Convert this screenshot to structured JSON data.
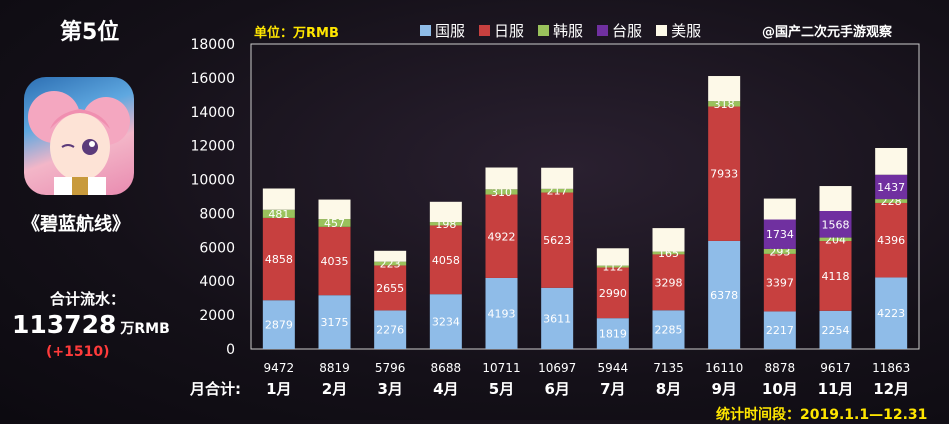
{
  "rank_label": "第5位",
  "game_name": "《碧蓝航线》",
  "icon_name": "azur-lane-app-icon",
  "total_label": "合计流水：",
  "total_value": "113728",
  "total_unit": "万RMB",
  "total_delta": "(+1510)",
  "unit_label": "单位：万RMB",
  "source_label": "@国产二次元手游观察",
  "period_label": "统计时间段：2019.1.1—12.31",
  "monthly_total_label": "月合计:",
  "colors": {
    "国服": "#8fbce8",
    "日服": "#c7403f",
    "韩服": "#9ac25c",
    "台服": "#7030a0",
    "美服": "#fdf9e8",
    "axis_text": "#ffffff",
    "gridline": "#cccccc"
  },
  "chart_data": {
    "type": "bar",
    "stacked": true,
    "categories": [
      "1月",
      "2月",
      "3月",
      "4月",
      "5月",
      "6月",
      "7月",
      "8月",
      "9月",
      "10月",
      "11月",
      "12月"
    ],
    "ylim": [
      0,
      18000
    ],
    "yticks": [
      0,
      2000,
      4000,
      6000,
      8000,
      10000,
      12000,
      14000,
      16000,
      18000
    ],
    "legend_position": "top",
    "series": [
      {
        "name": "国服",
        "values": [
          2879,
          3175,
          2276,
          3234,
          4193,
          3611,
          1819,
          2285,
          6378,
          2217,
          2254,
          4223
        ],
        "labels": [
          "2879",
          "3175",
          "2276",
          "3234",
          "4193",
          "3611",
          "1819",
          "2285",
          "6378",
          "2217",
          "2254",
          "4223"
        ]
      },
      {
        "name": "日服",
        "values": [
          4858,
          4035,
          2655,
          4058,
          4922,
          5623,
          2990,
          3298,
          7933,
          3397,
          4118,
          4396
        ],
        "labels": [
          "4858",
          "4035",
          "2655",
          "4058",
          "4922",
          "5623",
          "2990",
          "3298",
          "7933",
          "3397",
          "4118",
          "4396"
        ]
      },
      {
        "name": "韩服",
        "values": [
          481,
          457,
          223,
          198,
          310,
          217,
          112,
          165,
          318,
          293,
          204,
          228
        ],
        "labels": [
          "481",
          "457",
          "223",
          "198",
          "310",
          "217",
          "112",
          "165",
          "318",
          "293",
          "204",
          "228"
        ]
      },
      {
        "name": "台服",
        "values": [
          0,
          0,
          0,
          0,
          0,
          0,
          0,
          0,
          0,
          1734,
          1568,
          1437
        ],
        "labels": [
          "",
          "",
          "",
          "",
          "",
          "",
          "",
          "",
          "",
          "1734",
          "1568",
          "1437"
        ]
      },
      {
        "name": "美服",
        "values": [
          1254,
          1152,
          642,
          1198,
          1286,
          1246,
          1023,
          1387,
          1481,
          1237,
          1473,
          1579
        ],
        "labels": [
          "",
          "",
          "",
          "",
          "",
          "",
          "",
          "",
          "",
          "",
          "",
          ""
        ]
      }
    ],
    "totals": [
      9472,
      8819,
      5796,
      8688,
      10711,
      10697,
      5944,
      7135,
      16110,
      8878,
      9617,
      11863
    ]
  }
}
